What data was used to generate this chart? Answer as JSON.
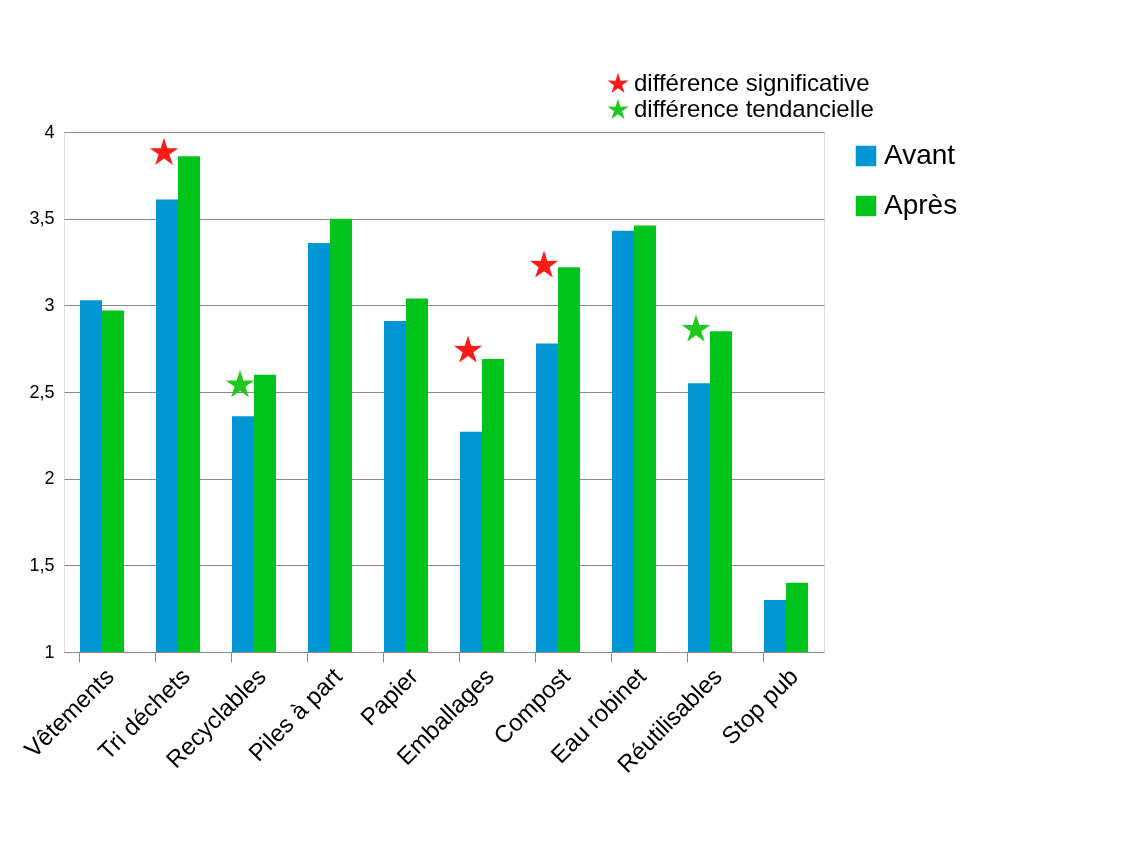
{
  "chart_data": {
    "type": "bar",
    "categories": [
      "Vêtements",
      "Tri déchets",
      "Recyclables",
      "Piles à part",
      "Papier",
      "Emballages",
      "Compost",
      "Eau robinet",
      "Réutilisables",
      "Stop pub"
    ],
    "series": [
      {
        "name": "Avant",
        "color": "#0096d6",
        "values": [
          3.03,
          3.61,
          2.36,
          3.36,
          2.91,
          2.27,
          2.78,
          3.43,
          2.55,
          1.3
        ]
      },
      {
        "name": "Après",
        "color": "#00c41c",
        "values": [
          2.97,
          3.86,
          2.6,
          3.5,
          3.04,
          2.69,
          3.22,
          3.46,
          2.85,
          1.4
        ]
      },
      {
        "name": "différence significative",
        "type": "scatter",
        "marker": "star",
        "color": "#ff1a1a",
        "x": [
          "Tri déchets",
          "Emballages",
          "Compost"
        ],
        "values": [
          3.88,
          2.74,
          3.23
        ]
      },
      {
        "name": "différence tendancielle",
        "type": "scatter",
        "marker": "star",
        "color": "#1ec81e",
        "x": [
          "Recyclables",
          "Réutilisables"
        ],
        "values": [
          2.54,
          2.86
        ]
      }
    ],
    "ylim": [
      1,
      4
    ],
    "yticks": [
      1,
      {
        "value": 1.5,
        "label": "1,5"
      },
      2,
      {
        "value": 2.5,
        "label": "2,5"
      },
      3,
      {
        "value": 3.5,
        "label": "3,5"
      },
      4
    ],
    "grid": "y",
    "legend": "right"
  }
}
